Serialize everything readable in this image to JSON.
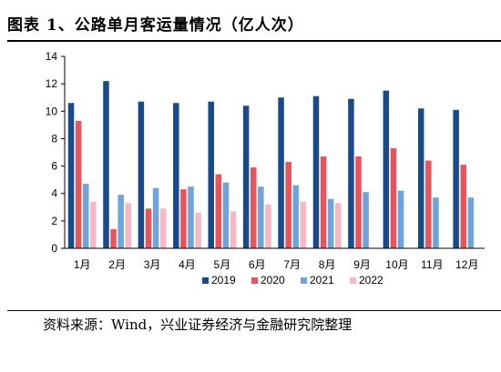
{
  "header": {
    "title": "图表 1、公路单月客运量情况（亿人次）"
  },
  "footer": {
    "source": "资料来源：Wind，兴业证券经济与金融研究院整理"
  },
  "chart_data": {
    "type": "bar",
    "title": "公路单月客运量情况（亿人次）",
    "categories": [
      "1月",
      "2月",
      "3月",
      "4月",
      "5月",
      "6月",
      "7月",
      "8月",
      "9月",
      "10月",
      "11月",
      "12月"
    ],
    "series": [
      {
        "name": "2019",
        "color": "#1a4a8c",
        "values": [
          10.6,
          12.2,
          10.7,
          10.6,
          10.7,
          10.4,
          11.0,
          11.1,
          10.9,
          11.5,
          10.2,
          10.1
        ]
      },
      {
        "name": "2020",
        "color": "#e8545a",
        "values": [
          9.3,
          1.4,
          2.9,
          4.3,
          5.4,
          5.9,
          6.3,
          6.7,
          6.7,
          7.3,
          6.4,
          6.1
        ]
      },
      {
        "name": "2021",
        "color": "#6fa3dc",
        "values": [
          4.7,
          3.9,
          4.4,
          4.5,
          4.8,
          4.5,
          4.6,
          3.6,
          4.1,
          4.2,
          3.7,
          3.7
        ]
      },
      {
        "name": "2022",
        "color": "#f6b8c4",
        "values": [
          3.4,
          3.3,
          2.9,
          2.6,
          2.7,
          3.2,
          3.4,
          3.3,
          null,
          null,
          null,
          null
        ]
      }
    ],
    "ylim": [
      0,
      14
    ],
    "yticks": [
      0,
      2,
      4,
      6,
      8,
      10,
      12,
      14
    ],
    "grid": false,
    "legend_position": "bottom"
  }
}
